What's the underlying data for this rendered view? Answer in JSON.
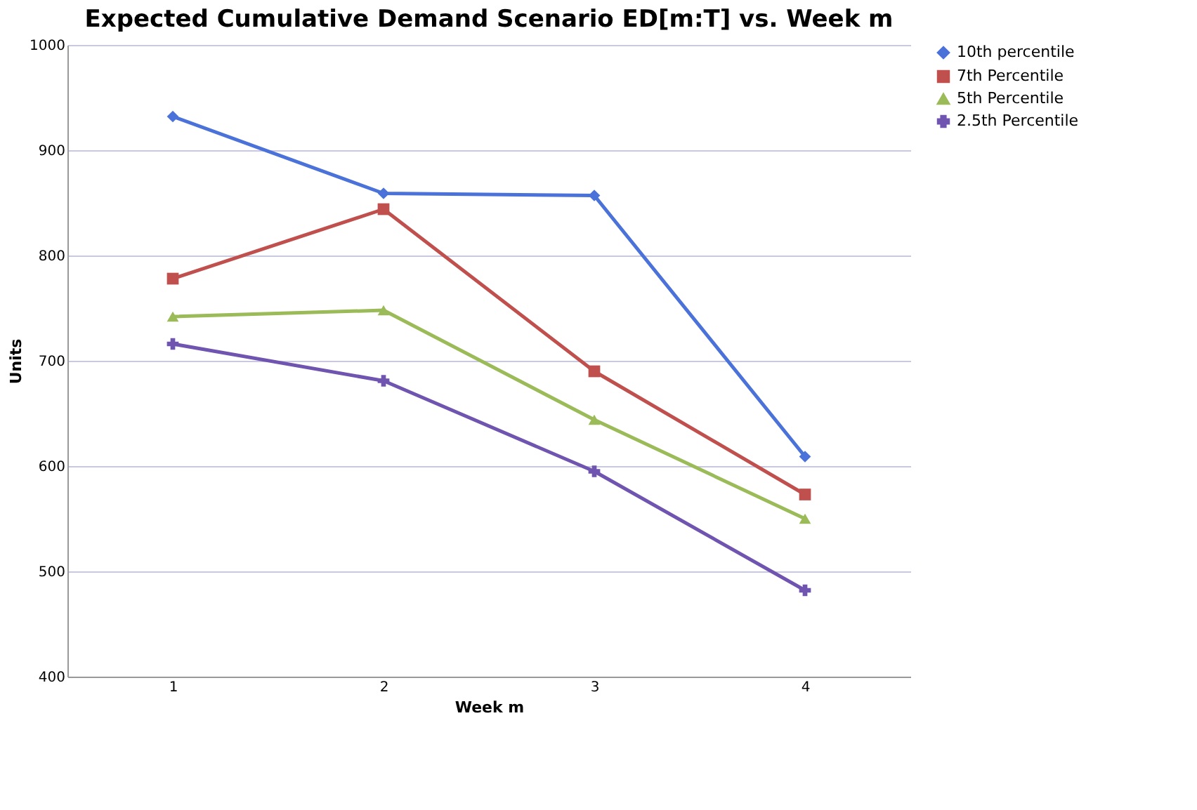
{
  "chart_data": {
    "type": "line",
    "title": "Expected Cumulative Demand Scenario ED[m:T] vs. Week m",
    "xlabel": "Week m",
    "ylabel": "Units",
    "categories": [
      "1",
      "2",
      "3",
      "4"
    ],
    "series": [
      {
        "name": "10th percentile",
        "color": "#4a72d8",
        "marker": "diamond",
        "values": [
          932,
          859,
          857,
          609
        ]
      },
      {
        "name": "7th Percentile",
        "color": "#c0504d",
        "marker": "square",
        "values": [
          778,
          844,
          690,
          573
        ]
      },
      {
        "name": "5th Percentile",
        "color": "#9bbb59",
        "marker": "triangle",
        "values": [
          742,
          748,
          644,
          550
        ]
      },
      {
        "name": "2.5th Percentile",
        "color": "#7055b0",
        "marker": "cross",
        "values": [
          716,
          681,
          595,
          482
        ]
      }
    ],
    "ylim": [
      400,
      1000
    ],
    "yticks": [
      400,
      500,
      600,
      700,
      800,
      900,
      1000
    ],
    "grid": "y",
    "legend": "right",
    "line_style": "solid"
  }
}
